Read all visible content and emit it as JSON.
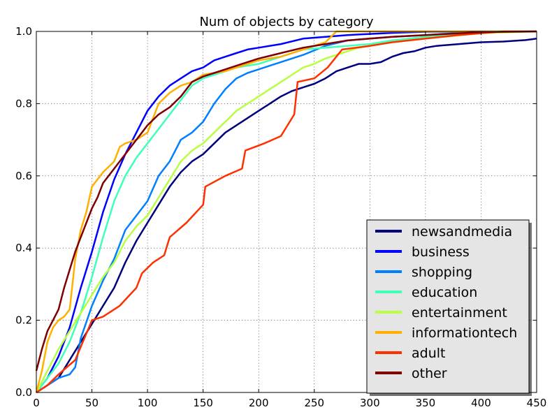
{
  "chart_data": {
    "type": "line",
    "title": "Num of objects by category",
    "xlabel": "",
    "ylabel": "",
    "xlim": [
      0,
      450
    ],
    "ylim": [
      0.0,
      1.0
    ],
    "x_ticks": [
      0,
      50,
      100,
      150,
      200,
      250,
      300,
      350,
      400,
      450
    ],
    "y_ticks": [
      "0.0",
      "0.2",
      "0.4",
      "0.6",
      "0.8",
      "1.0"
    ],
    "grid": true,
    "legend_position": "bottom-right",
    "series": [
      {
        "name": "newsandmedia",
        "color": "#00007f",
        "points": [
          [
            0,
            0
          ],
          [
            10,
            0.02
          ],
          [
            20,
            0.04
          ],
          [
            30,
            0.09
          ],
          [
            40,
            0.14
          ],
          [
            50,
            0.19
          ],
          [
            60,
            0.24
          ],
          [
            70,
            0.29
          ],
          [
            80,
            0.36
          ],
          [
            90,
            0.42
          ],
          [
            100,
            0.47
          ],
          [
            110,
            0.52
          ],
          [
            120,
            0.57
          ],
          [
            130,
            0.61
          ],
          [
            140,
            0.64
          ],
          [
            150,
            0.66
          ],
          [
            160,
            0.69
          ],
          [
            170,
            0.72
          ],
          [
            180,
            0.74
          ],
          [
            190,
            0.76
          ],
          [
            200,
            0.78
          ],
          [
            210,
            0.8
          ],
          [
            220,
            0.82
          ],
          [
            230,
            0.835
          ],
          [
            240,
            0.845
          ],
          [
            250,
            0.855
          ],
          [
            260,
            0.87
          ],
          [
            270,
            0.89
          ],
          [
            280,
            0.9
          ],
          [
            290,
            0.91
          ],
          [
            300,
            0.91
          ],
          [
            310,
            0.915
          ],
          [
            320,
            0.93
          ],
          [
            330,
            0.94
          ],
          [
            340,
            0.945
          ],
          [
            350,
            0.955
          ],
          [
            360,
            0.96
          ],
          [
            380,
            0.965
          ],
          [
            400,
            0.97
          ],
          [
            420,
            0.972
          ],
          [
            440,
            0.976
          ],
          [
            450,
            0.98
          ]
        ]
      },
      {
        "name": "business",
        "color": "#0000ff",
        "points": [
          [
            0,
            0
          ],
          [
            10,
            0.04
          ],
          [
            20,
            0.1
          ],
          [
            30,
            0.18
          ],
          [
            40,
            0.29
          ],
          [
            50,
            0.39
          ],
          [
            60,
            0.5
          ],
          [
            70,
            0.59
          ],
          [
            80,
            0.66
          ],
          [
            90,
            0.72
          ],
          [
            100,
            0.78
          ],
          [
            110,
            0.82
          ],
          [
            120,
            0.85
          ],
          [
            130,
            0.87
          ],
          [
            140,
            0.89
          ],
          [
            150,
            0.9
          ],
          [
            160,
            0.92
          ],
          [
            170,
            0.93
          ],
          [
            180,
            0.94
          ],
          [
            190,
            0.95
          ],
          [
            200,
            0.955
          ],
          [
            220,
            0.965
          ],
          [
            240,
            0.98
          ],
          [
            260,
            0.985
          ],
          [
            280,
            0.99
          ],
          [
            300,
            0.993
          ],
          [
            320,
            0.996
          ],
          [
            350,
            0.999
          ],
          [
            400,
            1.0
          ],
          [
            450,
            1.0
          ]
        ]
      },
      {
        "name": "shopping",
        "color": "#0080ff",
        "points": [
          [
            0,
            0
          ],
          [
            10,
            0.02
          ],
          [
            20,
            0.04
          ],
          [
            30,
            0.05
          ],
          [
            35,
            0.07
          ],
          [
            40,
            0.15
          ],
          [
            50,
            0.24
          ],
          [
            60,
            0.31
          ],
          [
            70,
            0.37
          ],
          [
            80,
            0.45
          ],
          [
            90,
            0.49
          ],
          [
            100,
            0.53
          ],
          [
            110,
            0.6
          ],
          [
            120,
            0.64
          ],
          [
            130,
            0.7
          ],
          [
            140,
            0.72
          ],
          [
            150,
            0.75
          ],
          [
            160,
            0.8
          ],
          [
            170,
            0.84
          ],
          [
            180,
            0.87
          ],
          [
            190,
            0.885
          ],
          [
            200,
            0.895
          ],
          [
            210,
            0.905
          ],
          [
            220,
            0.915
          ],
          [
            240,
            0.935
          ],
          [
            260,
            0.96
          ],
          [
            280,
            0.975
          ],
          [
            300,
            0.98
          ],
          [
            320,
            0.985
          ],
          [
            350,
            0.99
          ],
          [
            400,
            1.0
          ],
          [
            450,
            1.0
          ]
        ]
      },
      {
        "name": "education",
        "color": "#40ffb7",
        "points": [
          [
            0,
            0
          ],
          [
            10,
            0.04
          ],
          [
            20,
            0.08
          ],
          [
            30,
            0.14
          ],
          [
            40,
            0.22
          ],
          [
            50,
            0.32
          ],
          [
            60,
            0.43
          ],
          [
            70,
            0.53
          ],
          [
            80,
            0.6
          ],
          [
            90,
            0.65
          ],
          [
            100,
            0.69
          ],
          [
            110,
            0.73
          ],
          [
            120,
            0.77
          ],
          [
            130,
            0.81
          ],
          [
            140,
            0.85
          ],
          [
            150,
            0.87
          ],
          [
            160,
            0.88
          ],
          [
            170,
            0.89
          ],
          [
            180,
            0.9
          ],
          [
            200,
            0.91
          ],
          [
            220,
            0.93
          ],
          [
            240,
            0.95
          ],
          [
            260,
            0.955
          ],
          [
            280,
            0.96
          ],
          [
            300,
            0.965
          ],
          [
            320,
            0.975
          ],
          [
            350,
            0.985
          ],
          [
            400,
            1.0
          ],
          [
            450,
            1.0
          ]
        ]
      },
      {
        "name": "entertainment",
        "color": "#b7ff40",
        "points": [
          [
            0,
            0
          ],
          [
            10,
            0.06
          ],
          [
            20,
            0.12
          ],
          [
            30,
            0.17
          ],
          [
            40,
            0.22
          ],
          [
            50,
            0.27
          ],
          [
            60,
            0.32
          ],
          [
            70,
            0.36
          ],
          [
            80,
            0.42
          ],
          [
            90,
            0.46
          ],
          [
            100,
            0.49
          ],
          [
            110,
            0.54
          ],
          [
            120,
            0.59
          ],
          [
            130,
            0.64
          ],
          [
            140,
            0.67
          ],
          [
            150,
            0.69
          ],
          [
            160,
            0.72
          ],
          [
            170,
            0.75
          ],
          [
            180,
            0.78
          ],
          [
            190,
            0.8
          ],
          [
            200,
            0.82
          ],
          [
            210,
            0.84
          ],
          [
            220,
            0.86
          ],
          [
            230,
            0.88
          ],
          [
            240,
            0.9
          ],
          [
            250,
            0.91
          ],
          [
            260,
            0.925
          ],
          [
            270,
            0.935
          ],
          [
            280,
            0.945
          ],
          [
            290,
            0.955
          ],
          [
            300,
            0.96
          ],
          [
            320,
            0.97
          ],
          [
            350,
            0.98
          ],
          [
            400,
            0.995
          ],
          [
            450,
            1.0
          ]
        ]
      },
      {
        "name": "informationtech",
        "color": "#ffb000",
        "points": [
          [
            0,
            0
          ],
          [
            5,
            0.06
          ],
          [
            10,
            0.14
          ],
          [
            15,
            0.18
          ],
          [
            20,
            0.2
          ],
          [
            25,
            0.21
          ],
          [
            30,
            0.23
          ],
          [
            35,
            0.37
          ],
          [
            40,
            0.45
          ],
          [
            45,
            0.5
          ],
          [
            50,
            0.57
          ],
          [
            60,
            0.61
          ],
          [
            70,
            0.64
          ],
          [
            75,
            0.68
          ],
          [
            80,
            0.69
          ],
          [
            90,
            0.7
          ],
          [
            100,
            0.72
          ],
          [
            110,
            0.8
          ],
          [
            120,
            0.83
          ],
          [
            130,
            0.85
          ],
          [
            140,
            0.86
          ],
          [
            150,
            0.88
          ],
          [
            170,
            0.89
          ],
          [
            180,
            0.9
          ],
          [
            200,
            0.92
          ],
          [
            220,
            0.93
          ],
          [
            240,
            0.95
          ],
          [
            260,
            0.97
          ],
          [
            270,
            1.0
          ],
          [
            450,
            1.0
          ]
        ]
      },
      {
        "name": "adult",
        "color": "#ff3000",
        "points": [
          [
            0,
            0
          ],
          [
            10,
            0.02
          ],
          [
            20,
            0.05
          ],
          [
            35,
            0.09
          ],
          [
            50,
            0.2
          ],
          [
            60,
            0.21
          ],
          [
            75,
            0.24
          ],
          [
            90,
            0.29
          ],
          [
            95,
            0.33
          ],
          [
            105,
            0.36
          ],
          [
            115,
            0.38
          ],
          [
            120,
            0.43
          ],
          [
            135,
            0.47
          ],
          [
            150,
            0.52
          ],
          [
            152,
            0.57
          ],
          [
            170,
            0.6
          ],
          [
            185,
            0.62
          ],
          [
            188,
            0.67
          ],
          [
            205,
            0.69
          ],
          [
            220,
            0.71
          ],
          [
            232,
            0.77
          ],
          [
            235,
            0.86
          ],
          [
            250,
            0.87
          ],
          [
            262,
            0.9
          ],
          [
            275,
            0.95
          ],
          [
            300,
            0.96
          ],
          [
            320,
            0.97
          ],
          [
            350,
            0.98
          ],
          [
            380,
            0.99
          ],
          [
            420,
            1.0
          ],
          [
            450,
            1.0
          ]
        ]
      },
      {
        "name": "other",
        "color": "#7f0000",
        "points": [
          [
            0,
            0.06
          ],
          [
            5,
            0.12
          ],
          [
            10,
            0.17
          ],
          [
            15,
            0.2
          ],
          [
            20,
            0.23
          ],
          [
            25,
            0.29
          ],
          [
            30,
            0.34
          ],
          [
            35,
            0.39
          ],
          [
            40,
            0.43
          ],
          [
            45,
            0.47
          ],
          [
            50,
            0.51
          ],
          [
            55,
            0.54
          ],
          [
            60,
            0.58
          ],
          [
            70,
            0.62
          ],
          [
            80,
            0.66
          ],
          [
            90,
            0.7
          ],
          [
            100,
            0.74
          ],
          [
            110,
            0.77
          ],
          [
            120,
            0.79
          ],
          [
            130,
            0.82
          ],
          [
            140,
            0.86
          ],
          [
            150,
            0.875
          ],
          [
            160,
            0.885
          ],
          [
            170,
            0.895
          ],
          [
            180,
            0.905
          ],
          [
            190,
            0.915
          ],
          [
            200,
            0.925
          ],
          [
            220,
            0.94
          ],
          [
            240,
            0.955
          ],
          [
            260,
            0.965
          ],
          [
            280,
            0.975
          ],
          [
            300,
            0.98
          ],
          [
            320,
            0.985
          ],
          [
            350,
            0.99
          ],
          [
            400,
            0.998
          ],
          [
            450,
            1.0
          ]
        ]
      }
    ]
  }
}
